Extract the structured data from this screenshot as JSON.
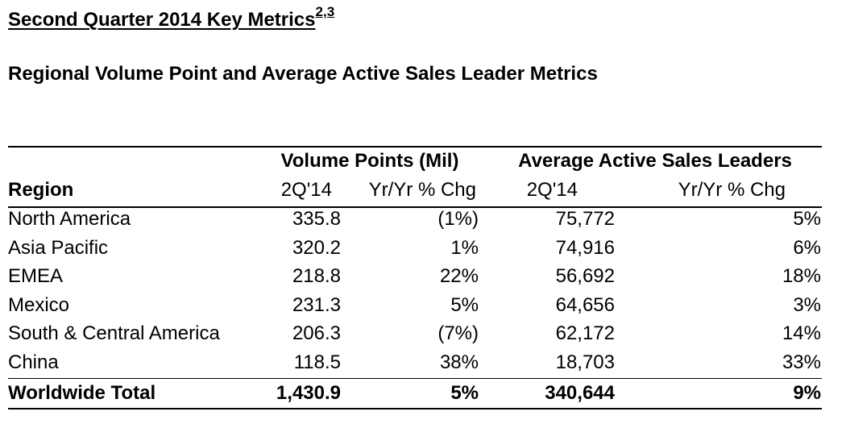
{
  "title": "Second Quarter 2014 Key Metrics",
  "title_superscript": "2,3",
  "subtitle": "Regional Volume Point and Average Active Sales Leader Metrics",
  "table": {
    "group_headers": {
      "volume_points": "Volume Points (Mil)",
      "sales_leaders": "Average Active Sales Leaders"
    },
    "column_headers": {
      "region": "Region",
      "vp_period": "2Q'14",
      "vp_change": "Yr/Yr % Chg",
      "asl_period": "2Q'14",
      "asl_change": "Yr/Yr % Chg"
    },
    "rows": [
      {
        "region": "North America",
        "vp": "335.8",
        "vp_chg": "(1%)",
        "asl": "75,772",
        "asl_chg": "5%"
      },
      {
        "region": "Asia Pacific",
        "vp": "320.2",
        "vp_chg": "1%",
        "asl": "74,916",
        "asl_chg": "6%"
      },
      {
        "region": "EMEA",
        "vp": "218.8",
        "vp_chg": "22%",
        "asl": "56,692",
        "asl_chg": "18%"
      },
      {
        "region": "Mexico",
        "vp": "231.3",
        "vp_chg": "5%",
        "asl": "64,656",
        "asl_chg": "3%"
      },
      {
        "region": "South & Central America",
        "vp": "206.3",
        "vp_chg": "(7%)",
        "asl": "62,172",
        "asl_chg": "14%"
      },
      {
        "region": "China",
        "vp": "118.5",
        "vp_chg": "38%",
        "asl": "18,703",
        "asl_chg": "33%"
      }
    ],
    "total": {
      "region": "Worldwide Total",
      "vp": "1,430.9",
      "vp_chg": "5%",
      "asl": "340,644",
      "asl_chg": "9%"
    }
  }
}
